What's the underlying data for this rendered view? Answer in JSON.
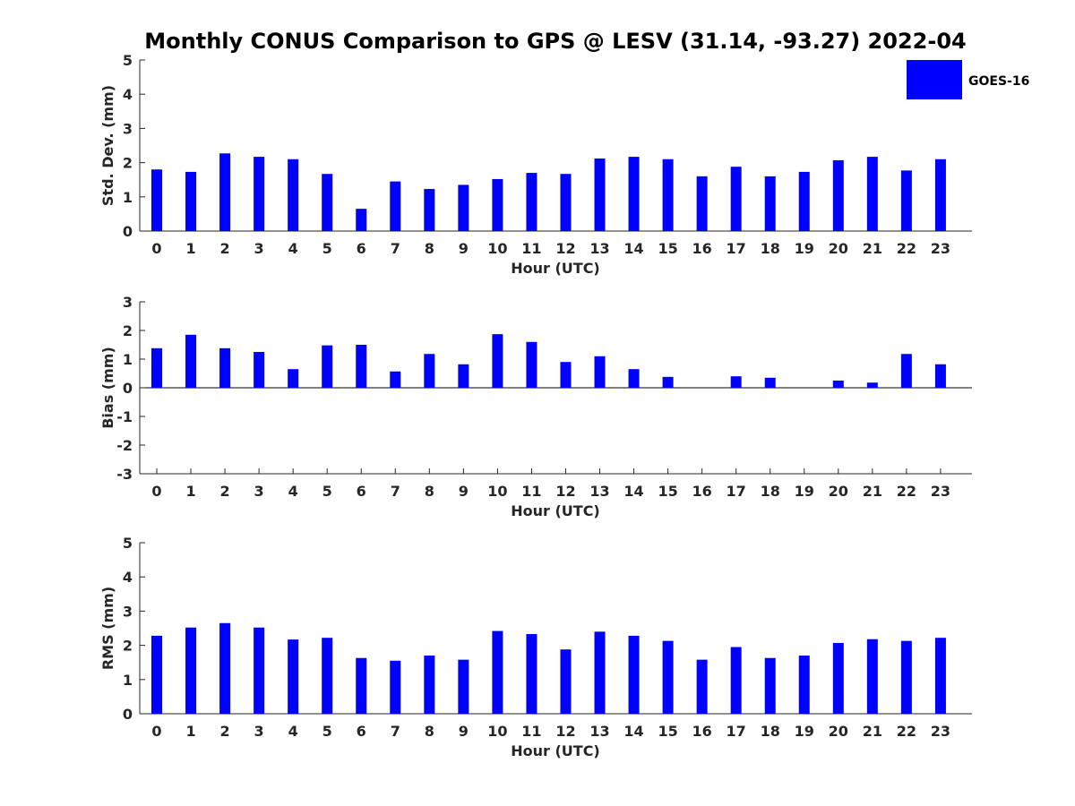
{
  "figure": {
    "title": "Monthly CONUS Comparison to GPS @ LESV (31.14, -93.27) 2022-04",
    "legend": {
      "label": "GOES-16",
      "color": "#0000ff",
      "placement": "top-right"
    }
  },
  "chart_data": [
    {
      "type": "bar",
      "series": [
        {
          "name": "GOES-16",
          "color": "#0000ff",
          "values": [
            1.8,
            1.73,
            2.27,
            2.17,
            2.1,
            1.67,
            0.65,
            1.45,
            1.23,
            1.35,
            1.52,
            1.7,
            1.67,
            2.12,
            2.17,
            2.1,
            1.6,
            1.88,
            1.6,
            1.73,
            2.07,
            2.17,
            1.77,
            2.1
          ]
        }
      ],
      "categories": [
        "0",
        "1",
        "2",
        "3",
        "4",
        "5",
        "6",
        "7",
        "8",
        "9",
        "10",
        "11",
        "12",
        "13",
        "14",
        "15",
        "16",
        "17",
        "18",
        "19",
        "20",
        "21",
        "22",
        "23"
      ],
      "xlabel": "Hour (UTC)",
      "ylabel": "Std. Dev. (mm)",
      "ylim": [
        0,
        5
      ],
      "yticks": [
        "0",
        "1",
        "2",
        "3",
        "4",
        "5"
      ],
      "grid": false
    },
    {
      "type": "bar",
      "series": [
        {
          "name": "GOES-16",
          "color": "#0000ff",
          "values": [
            1.38,
            1.85,
            1.38,
            1.25,
            0.65,
            1.48,
            1.5,
            0.57,
            1.18,
            0.82,
            1.87,
            1.6,
            0.9,
            1.1,
            0.65,
            0.38,
            0.0,
            0.4,
            0.35,
            0.0,
            0.25,
            0.18,
            1.18,
            0.82
          ]
        }
      ],
      "categories": [
        "0",
        "1",
        "2",
        "3",
        "4",
        "5",
        "6",
        "7",
        "8",
        "9",
        "10",
        "11",
        "12",
        "13",
        "14",
        "15",
        "16",
        "17",
        "18",
        "19",
        "20",
        "21",
        "22",
        "23"
      ],
      "xlabel": "Hour (UTC)",
      "ylabel": "Bias (mm)",
      "ylim": [
        -3,
        3
      ],
      "yticks": [
        "-3",
        "-2",
        "-1",
        "0",
        "1",
        "2",
        "3"
      ],
      "grid": false
    },
    {
      "type": "bar",
      "series": [
        {
          "name": "GOES-16",
          "color": "#0000ff",
          "values": [
            2.28,
            2.52,
            2.65,
            2.52,
            2.17,
            2.22,
            1.63,
            1.55,
            1.7,
            1.58,
            2.42,
            2.33,
            1.88,
            2.4,
            2.28,
            2.13,
            1.58,
            1.95,
            1.63,
            1.7,
            2.07,
            2.18,
            2.13,
            2.22
          ]
        }
      ],
      "categories": [
        "0",
        "1",
        "2",
        "3",
        "4",
        "5",
        "6",
        "7",
        "8",
        "9",
        "10",
        "11",
        "12",
        "13",
        "14",
        "15",
        "16",
        "17",
        "18",
        "19",
        "20",
        "21",
        "22",
        "23"
      ],
      "xlabel": "Hour (UTC)",
      "ylabel": "RMS (mm)",
      "ylim": [
        0,
        5
      ],
      "yticks": [
        "0",
        "1",
        "2",
        "3",
        "4",
        "5"
      ],
      "grid": false
    }
  ]
}
